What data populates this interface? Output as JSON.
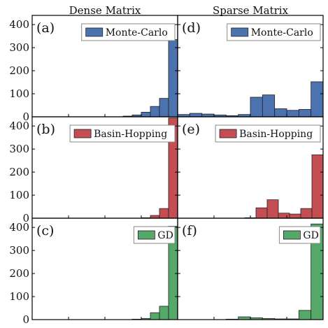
{
  "figure": {
    "column_titles": [
      "Dense Matrix",
      "Sparse Matrix"
    ]
  },
  "chart_data": [
    {
      "type": "bar",
      "panel": "(a)",
      "column": "Dense Matrix",
      "legend": "Monte-Carlo",
      "legend_position": "top-right",
      "color": "#4C72B0",
      "ylim": [
        0,
        440
      ],
      "yticks": [
        0,
        100,
        200,
        300,
        400
      ],
      "values": [
        0,
        0,
        0,
        0,
        0,
        0,
        0,
        0,
        0,
        0,
        3,
        8,
        20,
        45,
        80,
        335
      ]
    },
    {
      "type": "bar",
      "panel": "(d)",
      "column": "Sparse Matrix",
      "legend": "Monte-Carlo",
      "legend_position": "top-right",
      "color": "#4C72B0",
      "ylim": [
        0,
        440
      ],
      "yticks": [
        0,
        100,
        200,
        300,
        400
      ],
      "values": [
        10,
        15,
        12,
        8,
        5,
        10,
        85,
        95,
        35,
        28,
        32,
        152
      ]
    },
    {
      "type": "bar",
      "panel": "(b)",
      "column": "Dense Matrix",
      "legend": "Basin-Hopping",
      "legend_position": "top-right",
      "color": "#C44E52",
      "ylim": [
        0,
        440
      ],
      "yticks": [
        0,
        100,
        200,
        300,
        400
      ],
      "values": [
        0,
        0,
        0,
        0,
        0,
        0,
        0,
        0,
        0,
        0,
        0,
        0,
        2,
        12,
        42,
        435
      ]
    },
    {
      "type": "bar",
      "panel": "(e)",
      "column": "Sparse Matrix",
      "legend": "Basin-Hopping",
      "legend_position": "top-right",
      "color": "#C44E52",
      "ylim": [
        0,
        440
      ],
      "yticks": [
        0,
        100,
        200,
        300,
        400
      ],
      "values": [
        0,
        0,
        0,
        0,
        0,
        0,
        2,
        45,
        80,
        22,
        18,
        42,
        275
      ]
    },
    {
      "type": "bar",
      "panel": "(c)",
      "column": "Dense Matrix",
      "legend": "GD",
      "legend_position": "top-right",
      "color": "#55A868",
      "ylim": [
        0,
        440
      ],
      "yticks": [
        0,
        100,
        200,
        300,
        400
      ],
      "values": [
        0,
        0,
        0,
        0,
        0,
        0,
        0,
        0,
        0,
        0,
        0,
        2,
        5,
        30,
        58,
        405
      ]
    },
    {
      "type": "bar",
      "panel": "(f)",
      "column": "Sparse Matrix",
      "legend": "GD",
      "legend_position": "top-right",
      "color": "#55A868",
      "ylim": [
        0,
        440
      ],
      "yticks": [
        0,
        100,
        200,
        300,
        400
      ],
      "values": [
        0,
        0,
        0,
        0,
        2,
        12,
        8,
        5,
        3,
        3,
        40,
        415
      ]
    }
  ]
}
